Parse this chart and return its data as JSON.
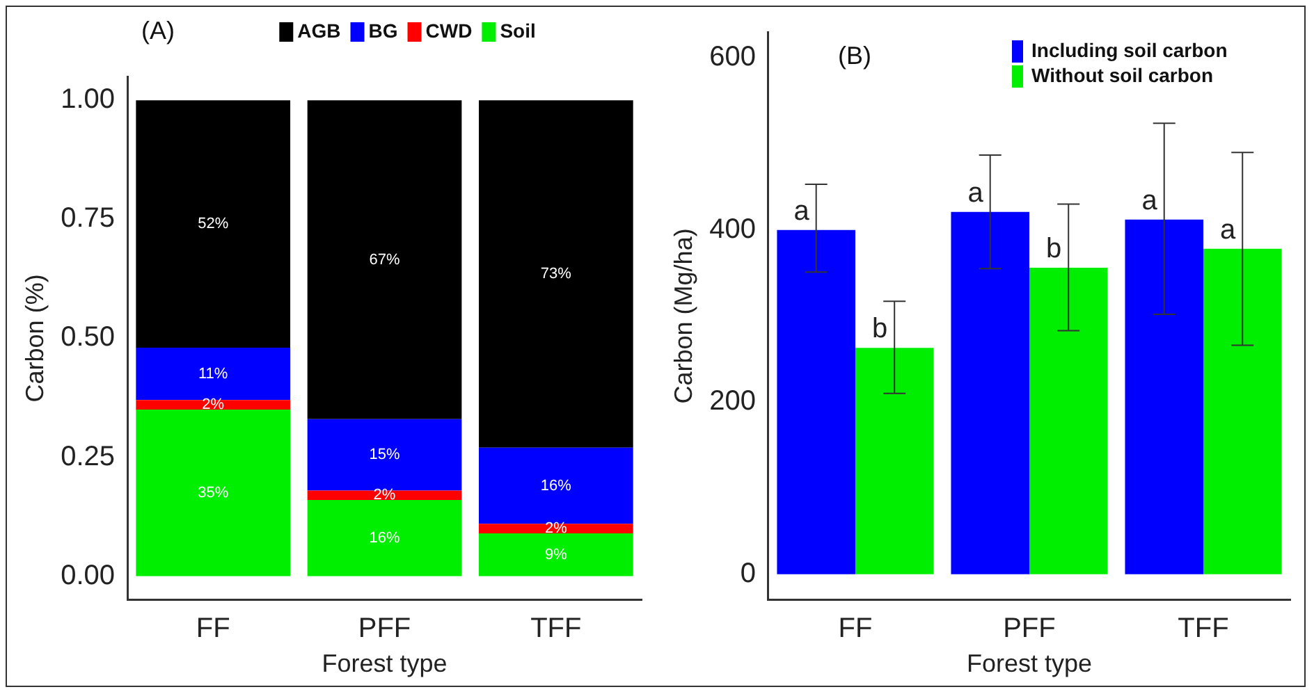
{
  "chart_data": [
    {
      "type": "bar",
      "title": "(A)",
      "xlabel": "Forest type",
      "ylabel": "Carbon (%)",
      "categories": [
        "FF",
        "PFF",
        "TFF"
      ],
      "stacked": true,
      "legend": "top",
      "ylim": [
        -0.05,
        1.05
      ],
      "yticks": [
        {
          "value": 0,
          "label": "0.00"
        },
        {
          "value": 0.25,
          "label": "0.25"
        },
        {
          "value": 0.5,
          "label": "0.50"
        },
        {
          "value": 0.75,
          "label": "0.75"
        },
        {
          "value": 1,
          "label": "1.00"
        }
      ],
      "series": [
        {
          "name": "Soil",
          "color": "#00ee00",
          "values": [
            0.35,
            0.16,
            0.09
          ],
          "value_labels": [
            "35%",
            "16%",
            "9%"
          ]
        },
        {
          "name": "CWD",
          "color": "#ff0000",
          "values": [
            0.02,
            0.02,
            0.02
          ],
          "value_labels": [
            "2%",
            "2%",
            "2%"
          ]
        },
        {
          "name": "BG",
          "color": "#0000ff",
          "values": [
            0.11,
            0.15,
            0.16
          ],
          "value_labels": [
            "11%",
            "15%",
            "16%"
          ]
        },
        {
          "name": "AGB",
          "color": "#000000",
          "values": [
            0.52,
            0.67,
            0.73
          ],
          "value_labels": [
            "52%",
            "67%",
            "73%"
          ]
        }
      ]
    },
    {
      "type": "bar",
      "title": "(B)",
      "xlabel": "Forest type",
      "ylabel": "Carbon (Mg/ha)",
      "categories": [
        "FF",
        "PFF",
        "TFF"
      ],
      "legend": "top right",
      "ylim": [
        -30,
        630
      ],
      "yticks": [
        0,
        200,
        400,
        600
      ],
      "series": [
        {
          "name": "Including soil carbon",
          "color": "#0000ff",
          "values": [
            400,
            421,
            412
          ],
          "errors": [
            [
              351,
              453
            ],
            [
              355,
              487
            ],
            [
              302,
              524
            ]
          ]
        },
        {
          "name": "Without soil carbon",
          "color": "#00ee00",
          "values": [
            263,
            356,
            378
          ],
          "errors": [
            [
              210,
              317
            ],
            [
              283,
              430
            ],
            [
              266,
              490
            ]
          ]
        }
      ],
      "annotations": [
        "a",
        "b",
        "a",
        "b",
        "a",
        "a"
      ]
    }
  ]
}
